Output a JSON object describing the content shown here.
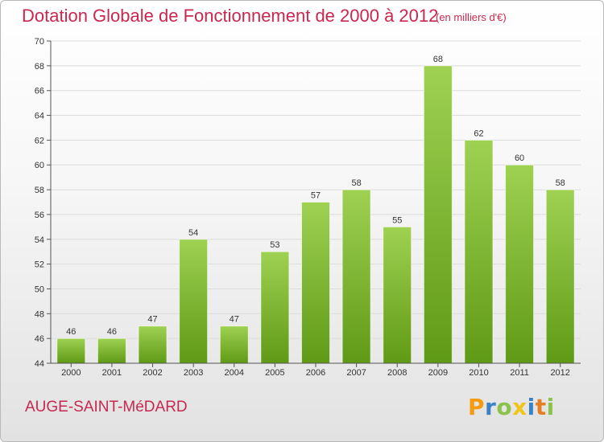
{
  "title": "Dotation Globale de Fonctionnement de 2000 à 2012",
  "unit_note": "(en milliers d'€)",
  "commune": "AUGE-SAINT-MéDARD",
  "logo": {
    "letters": [
      "P",
      "r",
      "o",
      "x",
      "i",
      "t",
      "i"
    ],
    "colors": [
      "#f39c12",
      "#3b82c4",
      "#8bc34a",
      "#f0c419",
      "#3b82c4",
      "#e67e22",
      "#8bc34a"
    ]
  },
  "colors": {
    "accent": "#c8284f",
    "bar_top": "#9fd152",
    "bar_bottom": "#5f9a16",
    "grid": "#dcdcdc",
    "axis": "#555555"
  },
  "chart_data": {
    "type": "bar",
    "categories": [
      "2000",
      "2001",
      "2002",
      "2003",
      "2004",
      "2005",
      "2006",
      "2007",
      "2008",
      "2009",
      "2010",
      "2011",
      "2012"
    ],
    "values": [
      46,
      46,
      47,
      54,
      47,
      53,
      57,
      58,
      55,
      68,
      62,
      60,
      58
    ],
    "ylim": [
      44,
      70
    ],
    "yticks": [
      44,
      46,
      48,
      50,
      52,
      54,
      56,
      58,
      60,
      62,
      64,
      66,
      68,
      70
    ],
    "grid": true
  }
}
